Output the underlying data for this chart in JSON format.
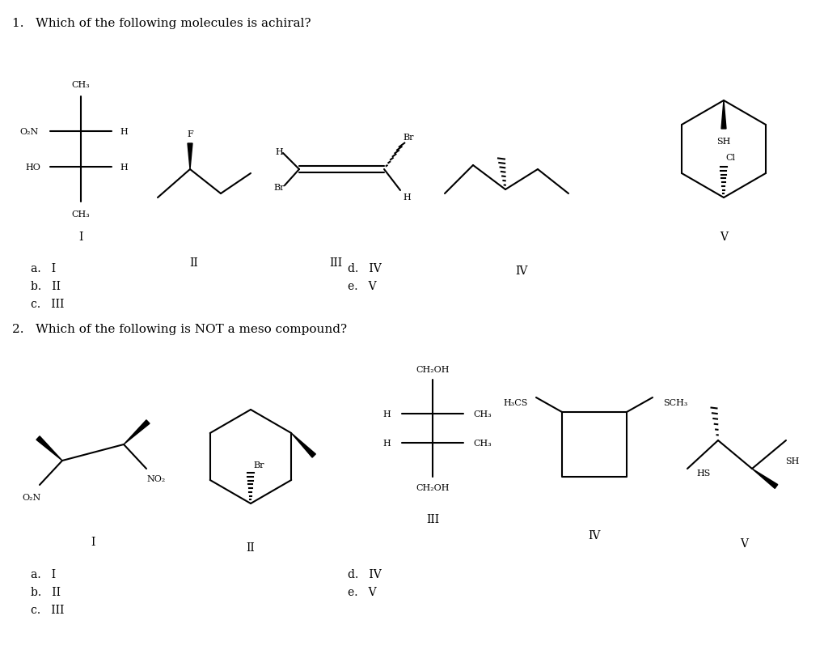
{
  "background": "#ffffff",
  "q1_text": "1.   Which of the following molecules is achiral?",
  "q2_text": "2.   Which of the following is NOT a meso compound?",
  "q1_answers_left": [
    "a.   I",
    "b.   II",
    "c.   III"
  ],
  "q1_answers_right": [
    "d.   IV",
    "e.   V"
  ],
  "q2_answers_left": [
    "a.   I",
    "b.   II",
    "c.   III"
  ],
  "q2_answers_right": [
    "d.   IV",
    "e.   V"
  ]
}
